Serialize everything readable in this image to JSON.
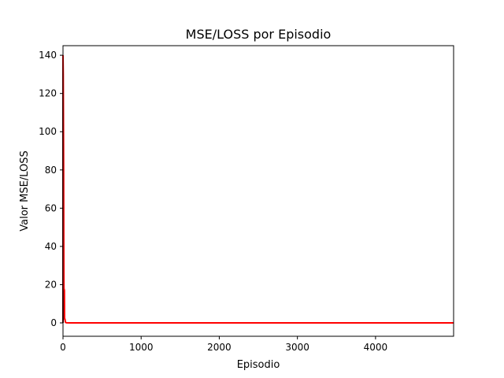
{
  "chart_data": {
    "type": "line",
    "title": "MSE/LOSS por Episodio",
    "xlabel": "Episodio",
    "ylabel": "Valor MSE/LOSS",
    "xlim": [
      0,
      4999
    ],
    "ylim": [
      -7,
      145
    ],
    "x_ticks": [
      0,
      1000,
      2000,
      3000,
      4000
    ],
    "y_ticks": [
      0,
      20,
      40,
      60,
      80,
      100,
      120,
      140
    ],
    "grid": false,
    "series": [
      {
        "name": "MSE/LOSS",
        "color": "#ff0000",
        "x": [
          0,
          3,
          5,
          8,
          10,
          12,
          15,
          18,
          20,
          22,
          25,
          28,
          30,
          35,
          40,
          50,
          100,
          500,
          1000,
          2000,
          3000,
          4000,
          4999
        ],
        "y": [
          140,
          130,
          110,
          80,
          40,
          18,
          17.5,
          17,
          2,
          2,
          2,
          1,
          0.5,
          0.2,
          0.1,
          0.05,
          0.02,
          0.01,
          0.01,
          0.01,
          0.01,
          0.01,
          0.01
        ]
      }
    ],
    "decor": {
      "dark_trace_color": "#5c0000",
      "dark_trace_x": 0,
      "dark_trace_y": [
        0,
        140
      ]
    }
  }
}
